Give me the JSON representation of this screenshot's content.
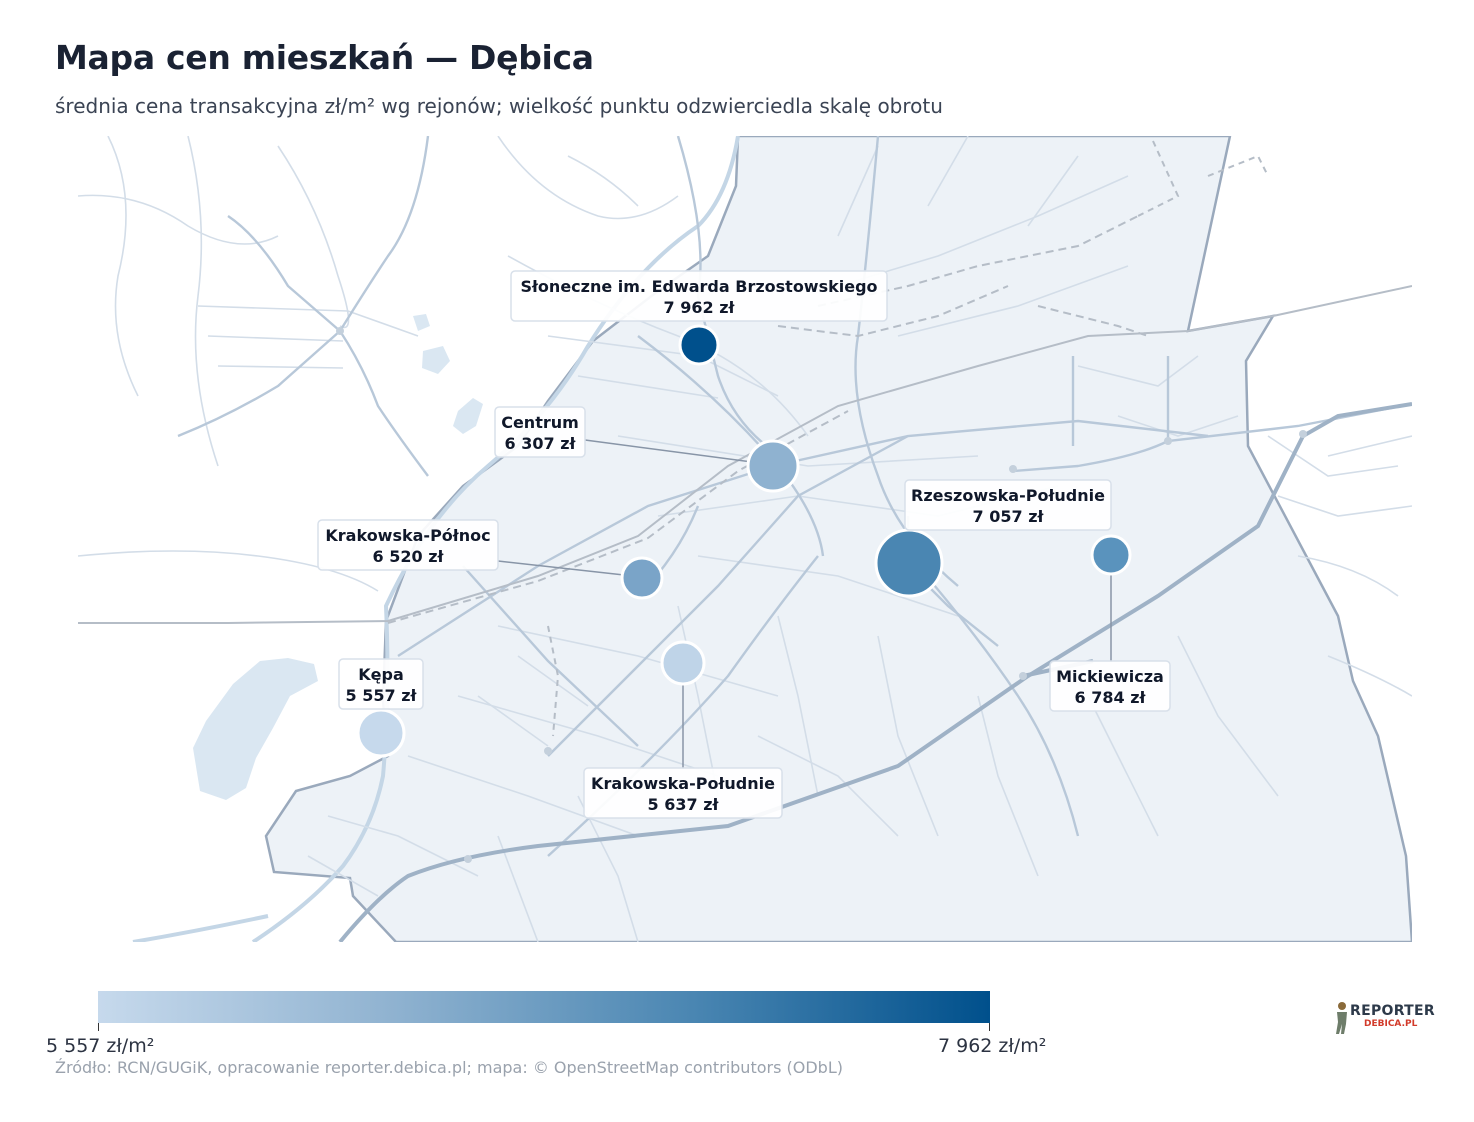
{
  "title": "Mapa cen mieszkań — Dębica",
  "subtitle": "średnia cena transakcyjna zł/m² wg rejonów; wielkość punktu odzwierciedla skalę obrotu",
  "districts": [
    {
      "name": "Słoneczne im. Edwarda Brzostowskiego",
      "price": "7 962 zł",
      "price_value": 7962,
      "color": "#00508c"
    },
    {
      "name": "Centrum",
      "price": "6 307 zł",
      "price_value": 6307,
      "color": "#8fb2d0"
    },
    {
      "name": "Krakowska-Północ",
      "price": "6 520 zł",
      "price_value": 6520,
      "color": "#7aa4c8"
    },
    {
      "name": "Rzeszowska-Południe",
      "price": "7 057 zł",
      "price_value": 7057,
      "color": "#4a86b2"
    },
    {
      "name": "Mickiewicza",
      "price": "6 784 zł",
      "price_value": 6784,
      "color": "#5a93bd"
    },
    {
      "name": "Kępa",
      "price": "5 557 zł",
      "price_value": 5557,
      "color": "#c6d9ec"
    },
    {
      "name": "Krakowska-Południe",
      "price": "5 637 zł",
      "price_value": 5637,
      "color": "#bfd4e8"
    }
  ],
  "legend": {
    "min_label": "5 557 zł/m²",
    "max_label": "7 962 zł/m²",
    "min_color": "#c6d9ec",
    "max_color": "#00508c"
  },
  "source": "Źródło: RCN/GUGiK, opracowanie reporter.debica.pl; mapa: © OpenStreetMap contributors (ODbL)",
  "logo": {
    "top": "REPORTER",
    "bottom": "DEBICA.PL"
  }
}
